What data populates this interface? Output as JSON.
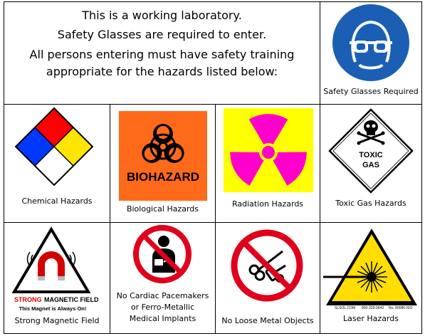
{
  "intro": {
    "line1": "This is a working laboratory.",
    "line2": "Safety Glasses are required to enter.",
    "line3": "All persons entering must have safety training",
    "line4": "appropriate for the hazards listed below:"
  },
  "signs": {
    "glasses": {
      "caption": "Safety Glasses Required",
      "icon": "safety-glasses-icon"
    },
    "chemical": {
      "caption": "Chemical Hazards",
      "icon": "nfpa-diamond-icon"
    },
    "biological": {
      "caption": "Biological Hazards",
      "label": "BIOHAZARD",
      "icon": "biohazard-icon"
    },
    "radiation": {
      "caption": "Radiation Hazards",
      "icon": "radiation-trefoil-icon"
    },
    "toxic": {
      "caption": "Toxic Gas Hazards",
      "label1": "TOXIC",
      "label2": "GAS",
      "icon": "skull-crossbones-icon"
    },
    "magnetic": {
      "caption": "Strong Magnetic Field",
      "label1a": "STRONG",
      "label1b": "MAGNETIC FIELD",
      "label2": "This Magnet is Always On!",
      "icon": "magnet-icon"
    },
    "pacemaker": {
      "caption1": "No Cardiac Pacemakers",
      "caption2": "or Ferro-Metallic",
      "caption3": "Medical Implants",
      "icon": "no-pacemaker-icon"
    },
    "metal": {
      "caption": "No Loose Metal Objects",
      "icon": "no-metal-objects-icon"
    },
    "laser": {
      "caption": "Laser Hazards",
      "fine1": "SLSOL.COM",
      "fine2": "800-326-0643",
      "fine3": "No. 80086-ISO",
      "icon": "laser-starburst-icon"
    }
  },
  "colors": {
    "blue": "#1a5fb4",
    "red": "#e0001b",
    "yellow": "#ffde00",
    "orange": "#ff6a1a",
    "magenta": "#ff00cc",
    "nfpa_blue": "#0038ff",
    "nfpa_red": "#ff0000",
    "nfpa_yellow": "#ffe500"
  }
}
